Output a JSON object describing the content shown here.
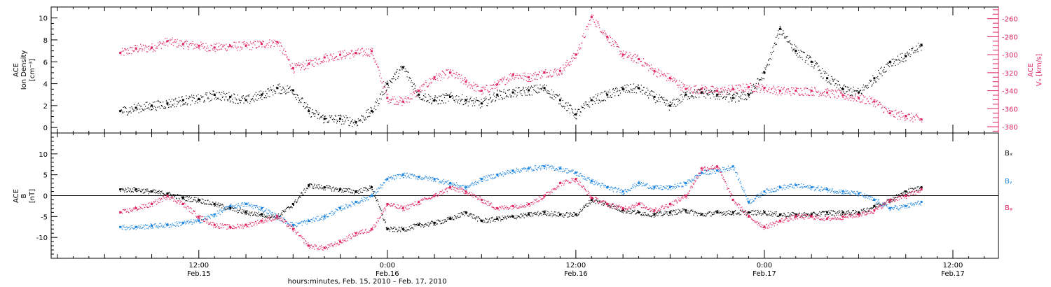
{
  "colors": {
    "black": "#000000",
    "pink": "#e0245e",
    "blue": "#1a84e0",
    "axis": "#000000"
  },
  "time_axis": {
    "caption": "hours:minutes, Feb. 15, 2010 – Feb. 17, 2010",
    "range_hours": [
      2.6,
      62.9
    ],
    "ticks": [
      {
        "hour": 12,
        "time": "12:00",
        "date": "Feb.15"
      },
      {
        "hour": 24,
        "time": "0:00",
        "date": "Feb.16"
      },
      {
        "hour": 36,
        "time": "12:00",
        "date": "Feb.16"
      },
      {
        "hour": 48,
        "time": "0:00",
        "date": "Feb.17"
      },
      {
        "hour": 60,
        "time": "12:00",
        "date": "Feb.17"
      }
    ]
  },
  "chart_data": [
    {
      "type": "scatter",
      "panel": "top",
      "ylabel_left": [
        "ACE",
        "Ion Density",
        "[cm⁻³]"
      ],
      "ylabel_right": [
        "ACE",
        "Vₓ [km/s]"
      ],
      "ylim_left": [
        -0.5,
        11
      ],
      "yticks_left": [
        "0",
        "2",
        "4",
        "6",
        "8",
        "10"
      ],
      "ylim_right": [
        -387,
        -247
      ],
      "yticks_right": [
        "-260",
        "-280",
        "-300",
        "-320",
        "-340",
        "-360",
        "-380"
      ],
      "series": [
        {
          "axis": "left",
          "color": "#000000",
          "x": [
            7,
            8,
            9,
            10,
            11,
            12,
            13,
            14,
            15,
            16,
            17,
            18,
            19,
            20,
            21,
            22,
            23,
            24,
            25,
            26,
            27,
            28,
            29,
            30,
            31,
            32,
            33,
            34,
            35,
            36,
            37,
            38,
            39,
            40,
            41,
            42,
            43,
            44,
            45,
            46,
            47,
            48,
            49,
            50,
            51,
            52,
            53,
            54,
            55,
            56,
            57,
            58
          ],
          "y": [
            1.5,
            1.8,
            2.0,
            2.2,
            2.5,
            2.6,
            3.0,
            2.8,
            2.5,
            3.0,
            3.6,
            3.4,
            1.5,
            0.8,
            0.8,
            0.5,
            1.5,
            4.0,
            5.5,
            3.0,
            2.5,
            2.8,
            2.5,
            2.2,
            3.0,
            3.2,
            3.4,
            3.6,
            2.5,
            1.2,
            2.5,
            3.0,
            3.5,
            3.6,
            2.8,
            2.0,
            3.0,
            3.2,
            3.0,
            2.7,
            3.0,
            5.0,
            9.0,
            7.0,
            6.0,
            4.5,
            3.5,
            3.2,
            4.5,
            6.0,
            6.5,
            7.5
          ]
        },
        {
          "axis": "right",
          "color": "#e0245e",
          "x": [
            7,
            8,
            9,
            10,
            11,
            12,
            13,
            14,
            15,
            16,
            17,
            18,
            19,
            20,
            21,
            22,
            23,
            24,
            25,
            26,
            27,
            28,
            29,
            30,
            31,
            32,
            33,
            34,
            35,
            36,
            37,
            38,
            39,
            40,
            41,
            42,
            43,
            44,
            45,
            46,
            47,
            48,
            49,
            50,
            51,
            52,
            53,
            54,
            55,
            56,
            57,
            58
          ],
          "y": [
            -298,
            -293,
            -292,
            -285,
            -288,
            -290,
            -292,
            -290,
            -290,
            -288,
            -286,
            -315,
            -310,
            -303,
            -300,
            -298,
            -296,
            -348,
            -352,
            -340,
            -325,
            -320,
            -330,
            -340,
            -333,
            -322,
            -325,
            -320,
            -318,
            -300,
            -258,
            -280,
            -300,
            -305,
            -318,
            -326,
            -338,
            -338,
            -340,
            -338,
            -336,
            -337,
            -340,
            -340,
            -340,
            -342,
            -345,
            -348,
            -352,
            -365,
            -368,
            -372
          ]
        }
      ]
    },
    {
      "type": "scatter",
      "panel": "bottom",
      "ylabel_left": [
        "ACE",
        "B",
        "[nT]"
      ],
      "ylim": [
        -15,
        15
      ],
      "yticks": [
        "-10",
        "-5",
        "0",
        "5",
        "10"
      ],
      "zero_line": true,
      "series": [
        {
          "name": "Bₓ",
          "color": "#000000",
          "x": [
            7,
            8,
            9,
            10,
            11,
            12,
            13,
            14,
            15,
            16,
            17,
            18,
            19,
            20,
            21,
            22,
            23,
            24,
            25,
            26,
            27,
            28,
            29,
            30,
            31,
            32,
            33,
            34,
            35,
            36,
            37,
            38,
            39,
            40,
            41,
            42,
            43,
            44,
            45,
            46,
            47,
            48,
            49,
            50,
            51,
            52,
            53,
            54,
            55,
            56,
            57,
            58
          ],
          "y": [
            1.5,
            1.5,
            1.0,
            0.5,
            -0.5,
            -1.0,
            -2.0,
            -3.0,
            -4.0,
            -4.5,
            -5.0,
            -2.0,
            2.5,
            2.0,
            1.5,
            1.0,
            2.0,
            -8.0,
            -8.0,
            -7.0,
            -6.5,
            -5.5,
            -4.0,
            -6.0,
            -5.5,
            -5.0,
            -4.5,
            -4.0,
            -4.5,
            -4.5,
            -1.0,
            -2.0,
            -3.5,
            -4.0,
            -4.5,
            -4.0,
            -3.5,
            -4.5,
            -4.0,
            -4.0,
            -4.0,
            -4.0,
            -4.5,
            -4.5,
            -4.5,
            -4.0,
            -4.0,
            -4.0,
            -2.5,
            -1.0,
            1.0,
            2.0
          ]
        },
        {
          "name": "Bᵧ",
          "color": "#1a84e0",
          "x": [
            7,
            8,
            9,
            10,
            11,
            12,
            13,
            14,
            15,
            16,
            17,
            18,
            19,
            20,
            21,
            22,
            23,
            24,
            25,
            26,
            27,
            28,
            29,
            30,
            31,
            32,
            33,
            34,
            35,
            36,
            37,
            38,
            39,
            40,
            41,
            42,
            43,
            44,
            45,
            46,
            47,
            48,
            49,
            50,
            51,
            52,
            53,
            54,
            55,
            56,
            57,
            58
          ],
          "y": [
            -7.5,
            -7.5,
            -7.2,
            -7.0,
            -6.5,
            -6.0,
            -4.5,
            -2.5,
            -2.0,
            -3.0,
            -5.0,
            -7.0,
            -6.0,
            -5.0,
            -3.0,
            -1.5,
            0.0,
            4.0,
            5.0,
            4.5,
            4.0,
            3.0,
            2.0,
            4.0,
            5.0,
            6.0,
            6.5,
            7.0,
            6.5,
            5.5,
            3.5,
            2.0,
            1.0,
            3.0,
            2.0,
            2.0,
            3.0,
            5.5,
            6.0,
            7.0,
            -1.5,
            1.0,
            2.0,
            2.5,
            2.0,
            1.5,
            1.0,
            0.5,
            -1.0,
            -3.0,
            -2.5,
            -1.5
          ]
        },
        {
          "name": "Bᵩ",
          "color": "#e0245e",
          "x": [
            7,
            8,
            9,
            10,
            11,
            12,
            13,
            14,
            15,
            16,
            17,
            18,
            19,
            20,
            21,
            22,
            23,
            24,
            25,
            26,
            27,
            28,
            29,
            30,
            31,
            32,
            33,
            34,
            35,
            36,
            37,
            38,
            39,
            40,
            41,
            42,
            43,
            44,
            45,
            46,
            47,
            48,
            49,
            50,
            51,
            52,
            53,
            54,
            55,
            56,
            57,
            58
          ],
          "y": [
            -4.0,
            -3.0,
            -2.0,
            0.0,
            -2.0,
            -5.0,
            -7.0,
            -7.5,
            -7.0,
            -6.0,
            -5.0,
            -8.0,
            -12.0,
            -12.5,
            -11.0,
            -9.0,
            -8.0,
            -2.0,
            -3.0,
            -1.5,
            0.0,
            2.0,
            1.0,
            -1.0,
            -3.0,
            -2.5,
            -2.0,
            0.0,
            3.0,
            4.0,
            -0.5,
            -2.0,
            -3.0,
            -2.0,
            -3.5,
            -2.0,
            0.0,
            6.5,
            7.0,
            -1.0,
            -5.0,
            -7.5,
            -6.0,
            -5.0,
            -5.0,
            -5.5,
            -5.0,
            -4.5,
            -3.5,
            -1.0,
            0.0,
            1.5
          ]
        }
      ]
    }
  ]
}
